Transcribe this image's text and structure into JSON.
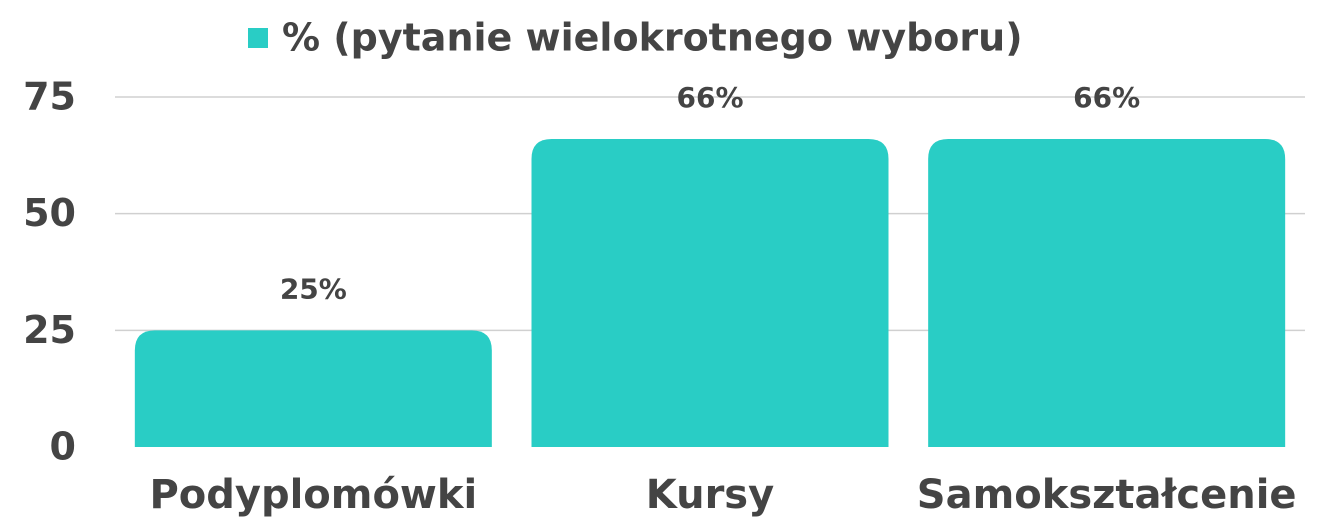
{
  "chart_data": {
    "type": "bar",
    "categories": [
      "Podyplomówki",
      "Kursy",
      "Samokształcenie"
    ],
    "series": [
      {
        "name": "% (pytanie wielokrotnego wyboru)",
        "color": "#29cdc5",
        "values": [
          25,
          66,
          66
        ],
        "value_labels": [
          "25%",
          "66%",
          "66%"
        ]
      }
    ],
    "ylim": [
      0,
      75
    ],
    "yticks": [
      0,
      25,
      50,
      75
    ],
    "grid": true,
    "legend": "top"
  }
}
